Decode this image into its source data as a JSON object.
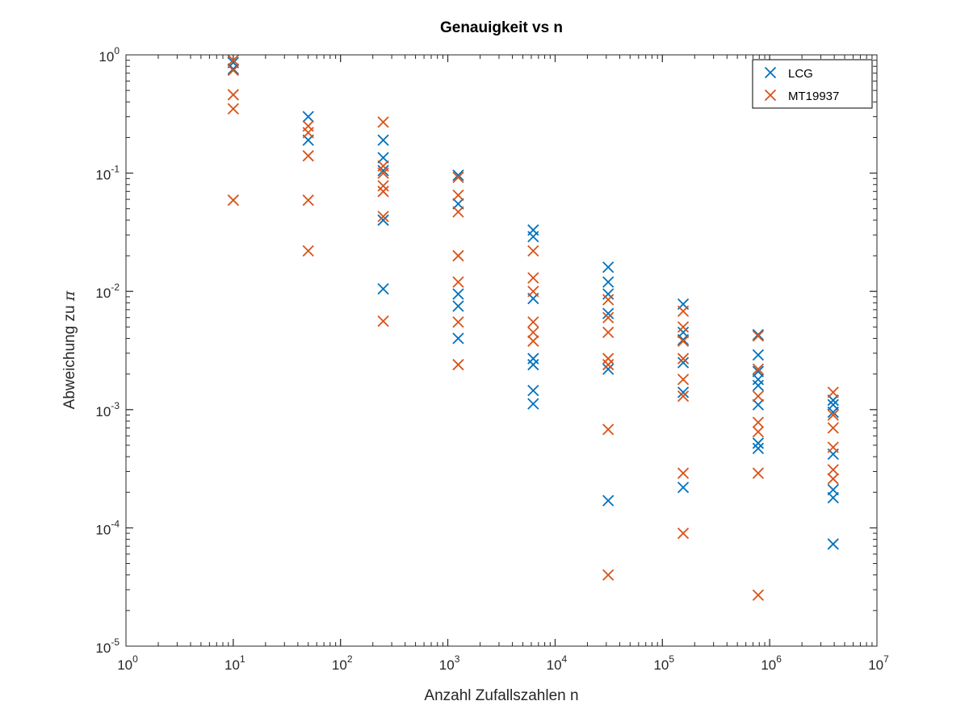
{
  "chart_data": {
    "type": "scatter",
    "title": "Genauigkeit vs n",
    "xlabel": "Anzahl Zufallszahlen n",
    "ylabel_prefix": "Abweichung zu ",
    "ylabel_symbol": "π",
    "xscale": "log",
    "yscale": "log",
    "xlim": [
      1,
      10000000
    ],
    "ylim": [
      1e-05,
      1
    ],
    "grid": false,
    "legend_position": "top-right",
    "x_ticks": [
      {
        "base": "10",
        "exp": "0",
        "value": 1
      },
      {
        "base": "10",
        "exp": "1",
        "value": 10
      },
      {
        "base": "10",
        "exp": "2",
        "value": 100
      },
      {
        "base": "10",
        "exp": "3",
        "value": 1000
      },
      {
        "base": "10",
        "exp": "4",
        "value": 10000
      },
      {
        "base": "10",
        "exp": "5",
        "value": 100000
      },
      {
        "base": "10",
        "exp": "6",
        "value": 1000000
      },
      {
        "base": "10",
        "exp": "7",
        "value": 10000000
      }
    ],
    "y_ticks": [
      {
        "base": "10",
        "exp": "-5",
        "value": 1e-05
      },
      {
        "base": "10",
        "exp": "-4",
        "value": 0.0001
      },
      {
        "base": "10",
        "exp": "-3",
        "value": 0.001
      },
      {
        "base": "10",
        "exp": "-2",
        "value": 0.01
      },
      {
        "base": "10",
        "exp": "-1",
        "value": 0.1
      },
      {
        "base": "10",
        "exp": "0",
        "value": 1
      }
    ],
    "series": [
      {
        "name": "LCG",
        "color": "#0072bd",
        "marker": "x",
        "points": [
          [
            10,
            0.86
          ],
          [
            10,
            0.76
          ],
          [
            50,
            0.3
          ],
          [
            50,
            0.19
          ],
          [
            250,
            0.19
          ],
          [
            250,
            0.135
          ],
          [
            250,
            0.105
          ],
          [
            250,
            0.04
          ],
          [
            250,
            0.0105
          ],
          [
            1250,
            0.096
          ],
          [
            1250,
            0.055
          ],
          [
            1250,
            0.0095
          ],
          [
            1250,
            0.0075
          ],
          [
            1250,
            0.004
          ],
          [
            6250,
            0.033
          ],
          [
            6250,
            0.029
          ],
          [
            6250,
            0.0087
          ],
          [
            6250,
            0.0027
          ],
          [
            6250,
            0.0024
          ],
          [
            6250,
            0.00145
          ],
          [
            6250,
            0.00112
          ],
          [
            31250,
            0.016
          ],
          [
            31250,
            0.012
          ],
          [
            31250,
            0.0095
          ],
          [
            31250,
            0.0065
          ],
          [
            31250,
            0.0022
          ],
          [
            31250,
            0.00017
          ],
          [
            156250,
            0.0078
          ],
          [
            156250,
            0.0045
          ],
          [
            156250,
            0.0039
          ],
          [
            156250,
            0.0025
          ],
          [
            156250,
            0.0014
          ],
          [
            156250,
            0.00022
          ],
          [
            781250,
            0.0043
          ],
          [
            781250,
            0.0029
          ],
          [
            781250,
            0.0021
          ],
          [
            781250,
            0.0018
          ],
          [
            781250,
            0.0016
          ],
          [
            781250,
            0.0011
          ],
          [
            781250,
            0.00052
          ],
          [
            781250,
            0.00047
          ],
          [
            3906250,
            0.0012
          ],
          [
            3906250,
            0.0011
          ],
          [
            3906250,
            0.00095
          ],
          [
            3906250,
            0.00042
          ],
          [
            3906250,
            0.00021
          ],
          [
            3906250,
            0.00018
          ],
          [
            3906250,
            7.3e-05
          ]
        ]
      },
      {
        "name": "MT19937",
        "color": "#d95319",
        "marker": "x",
        "points": [
          [
            10,
            0.9
          ],
          [
            10,
            0.74
          ],
          [
            10,
            0.46
          ],
          [
            10,
            0.35
          ],
          [
            10,
            0.059
          ],
          [
            50,
            0.25
          ],
          [
            50,
            0.22
          ],
          [
            50,
            0.14
          ],
          [
            50,
            0.059
          ],
          [
            50,
            0.022
          ],
          [
            250,
            0.27
          ],
          [
            250,
            0.115
          ],
          [
            250,
            0.1
          ],
          [
            250,
            0.078
          ],
          [
            250,
            0.07
          ],
          [
            250,
            0.043
          ],
          [
            250,
            0.0056
          ],
          [
            1250,
            0.092
          ],
          [
            1250,
            0.065
          ],
          [
            1250,
            0.047
          ],
          [
            1250,
            0.02
          ],
          [
            1250,
            0.012
          ],
          [
            1250,
            0.0055
          ],
          [
            1250,
            0.0024
          ],
          [
            6250,
            0.022
          ],
          [
            6250,
            0.013
          ],
          [
            6250,
            0.01
          ],
          [
            6250,
            0.0055
          ],
          [
            6250,
            0.0045
          ],
          [
            6250,
            0.0038
          ],
          [
            31250,
            0.0085
          ],
          [
            31250,
            0.006
          ],
          [
            31250,
            0.0045
          ],
          [
            31250,
            0.0027
          ],
          [
            31250,
            0.0024
          ],
          [
            31250,
            0.00068
          ],
          [
            31250,
            4e-05
          ],
          [
            156250,
            0.0068
          ],
          [
            156250,
            0.005
          ],
          [
            156250,
            0.0038
          ],
          [
            156250,
            0.0027
          ],
          [
            156250,
            0.0018
          ],
          [
            156250,
            0.0013
          ],
          [
            156250,
            0.00029
          ],
          [
            156250,
            9e-05
          ],
          [
            781250,
            0.0042
          ],
          [
            781250,
            0.0022
          ],
          [
            781250,
            0.0013
          ],
          [
            781250,
            0.00078
          ],
          [
            781250,
            0.00065
          ],
          [
            781250,
            0.00029
          ],
          [
            781250,
            2.7e-05
          ],
          [
            3906250,
            0.0014
          ],
          [
            3906250,
            0.0009
          ],
          [
            3906250,
            0.0007
          ],
          [
            3906250,
            0.00048
          ],
          [
            3906250,
            0.00031
          ],
          [
            3906250,
            0.00026
          ]
        ]
      }
    ]
  }
}
